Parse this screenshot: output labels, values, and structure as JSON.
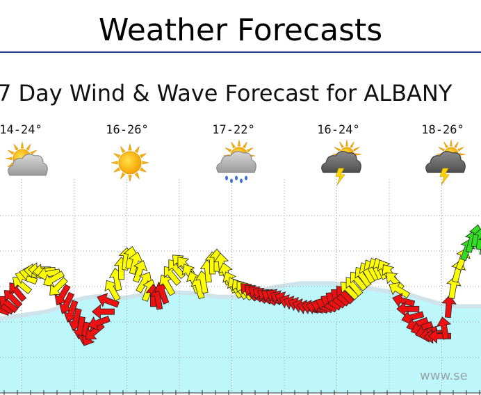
{
  "header": {
    "title": "Weather Forecasts"
  },
  "chart_data": {
    "type": "scatter",
    "title": "7 Day Wind & Wave Forecast for ALBANY",
    "location": "ALBANY",
    "watermark": "www.se",
    "grid": true,
    "legend": "none",
    "days": [
      {
        "temps": "14-24°",
        "icon": "sun-cloud-icon"
      },
      {
        "temps": "16-26°",
        "icon": "sun-icon"
      },
      {
        "temps": "17-22°",
        "icon": "sun-rain-icon"
      },
      {
        "temps": "16-24°",
        "icon": "thunderstorm-icon"
      },
      {
        "temps": "18-26°",
        "icon": "thunderstorm-icon"
      }
    ],
    "colors": {
      "strong": "#ee1111",
      "moderate": "#ffff00",
      "light": "#33dd22",
      "wave": "#bdf6fb",
      "wave_edge": "#cfe3ea"
    },
    "wind_levels": [
      2.6,
      2.8,
      3.0,
      3.4,
      3.9,
      4.4,
      4.9,
      5.2,
      5.4,
      5.5,
      5.4,
      5.2,
      4.8,
      4.2,
      3.6,
      3.0,
      2.4,
      1.8,
      1.2,
      0.8,
      0.6,
      0.9,
      1.6,
      2.4,
      3.2,
      4.0,
      4.8,
      5.6,
      6.3,
      6.4,
      6.0,
      5.4,
      4.6,
      4.0,
      3.6,
      3.4,
      3.8,
      4.4,
      5.1,
      5.6,
      6.0,
      5.8,
      5.2,
      4.6,
      4.2,
      4.6,
      5.4,
      6.0,
      6.2,
      5.9,
      5.2,
      4.6,
      4.2,
      4.1,
      4.0,
      3.9,
      3.8,
      3.7,
      3.6,
      3.5,
      3.5,
      3.5,
      3.4,
      3.3,
      3.1,
      3.0,
      2.9,
      2.8,
      2.7,
      2.7,
      2.7,
      2.8,
      2.9,
      3.1,
      3.3,
      3.5,
      3.7,
      4.0,
      4.3,
      4.7,
      5.0,
      5.3,
      5.5,
      5.6,
      5.6,
      5.5,
      5.2,
      4.7,
      4.0,
      3.2,
      2.6,
      2.0,
      1.5,
      1.2,
      0.9,
      0.7,
      0.6,
      0.6,
      1.2,
      2.8,
      4.2,
      5.4,
      6.3,
      7.0,
      7.6,
      8.0,
      7.8,
      7.4
    ],
    "wind_dirs": [
      200,
      210,
      220,
      225,
      230,
      220,
      200,
      190,
      185,
      180,
      175,
      170,
      150,
      135,
      120,
      115,
      110,
      105,
      100,
      100,
      120,
      140,
      160,
      180,
      200,
      240,
      260,
      270,
      275,
      280,
      285,
      290,
      300,
      290,
      270,
      260,
      250,
      240,
      230,
      230,
      225,
      230,
      240,
      250,
      255,
      260,
      265,
      270,
      270,
      265,
      255,
      245,
      240,
      235,
      230,
      225,
      220,
      220,
      215,
      215,
      210,
      210,
      205,
      205,
      200,
      200,
      200,
      195,
      195,
      195,
      195,
      200,
      205,
      210,
      215,
      220,
      225,
      225,
      230,
      230,
      235,
      240,
      240,
      245,
      245,
      240,
      235,
      225,
      210,
      195,
      180,
      165,
      160,
      160,
      165,
      170,
      175,
      180,
      260,
      275,
      280,
      285,
      290,
      290,
      285,
      280,
      280,
      285
    ],
    "wave_levels": [
      1.9,
      1.95,
      2.0,
      2.05,
      2.1,
      2.15,
      2.2,
      2.25,
      2.3,
      2.35,
      2.4,
      2.5,
      2.6,
      2.75,
      2.9,
      3.05,
      3.2,
      3.3,
      3.4,
      3.45,
      3.5,
      3.55,
      3.55,
      3.5,
      3.45,
      3.4,
      3.4,
      3.45,
      3.5,
      3.55,
      3.6,
      3.65,
      3.65,
      3.7,
      3.7,
      3.75,
      3.75,
      3.8,
      3.8,
      3.8,
      3.8,
      3.8,
      3.75,
      3.7,
      3.65,
      3.6,
      3.55,
      3.5,
      3.5,
      3.5,
      3.5,
      3.5,
      3.55,
      3.6,
      3.7,
      3.8,
      3.9,
      4.0,
      4.1,
      4.2,
      4.25,
      4.3,
      4.35,
      4.4,
      4.45,
      4.5,
      4.5,
      4.5,
      4.5,
      4.5,
      4.5,
      4.5,
      4.5,
      4.45,
      4.4,
      4.35,
      4.3,
      4.25,
      4.2,
      4.15,
      4.1,
      4.05,
      4.0,
      3.95,
      3.9,
      3.85,
      3.8,
      3.75,
      3.7,
      3.6,
      3.5,
      3.4,
      3.3,
      3.2,
      3.1,
      3.0,
      2.95,
      2.9,
      2.85,
      2.8,
      2.8,
      2.8,
      2.8,
      2.8,
      2.8,
      2.8,
      2.8,
      2.8
    ]
  }
}
